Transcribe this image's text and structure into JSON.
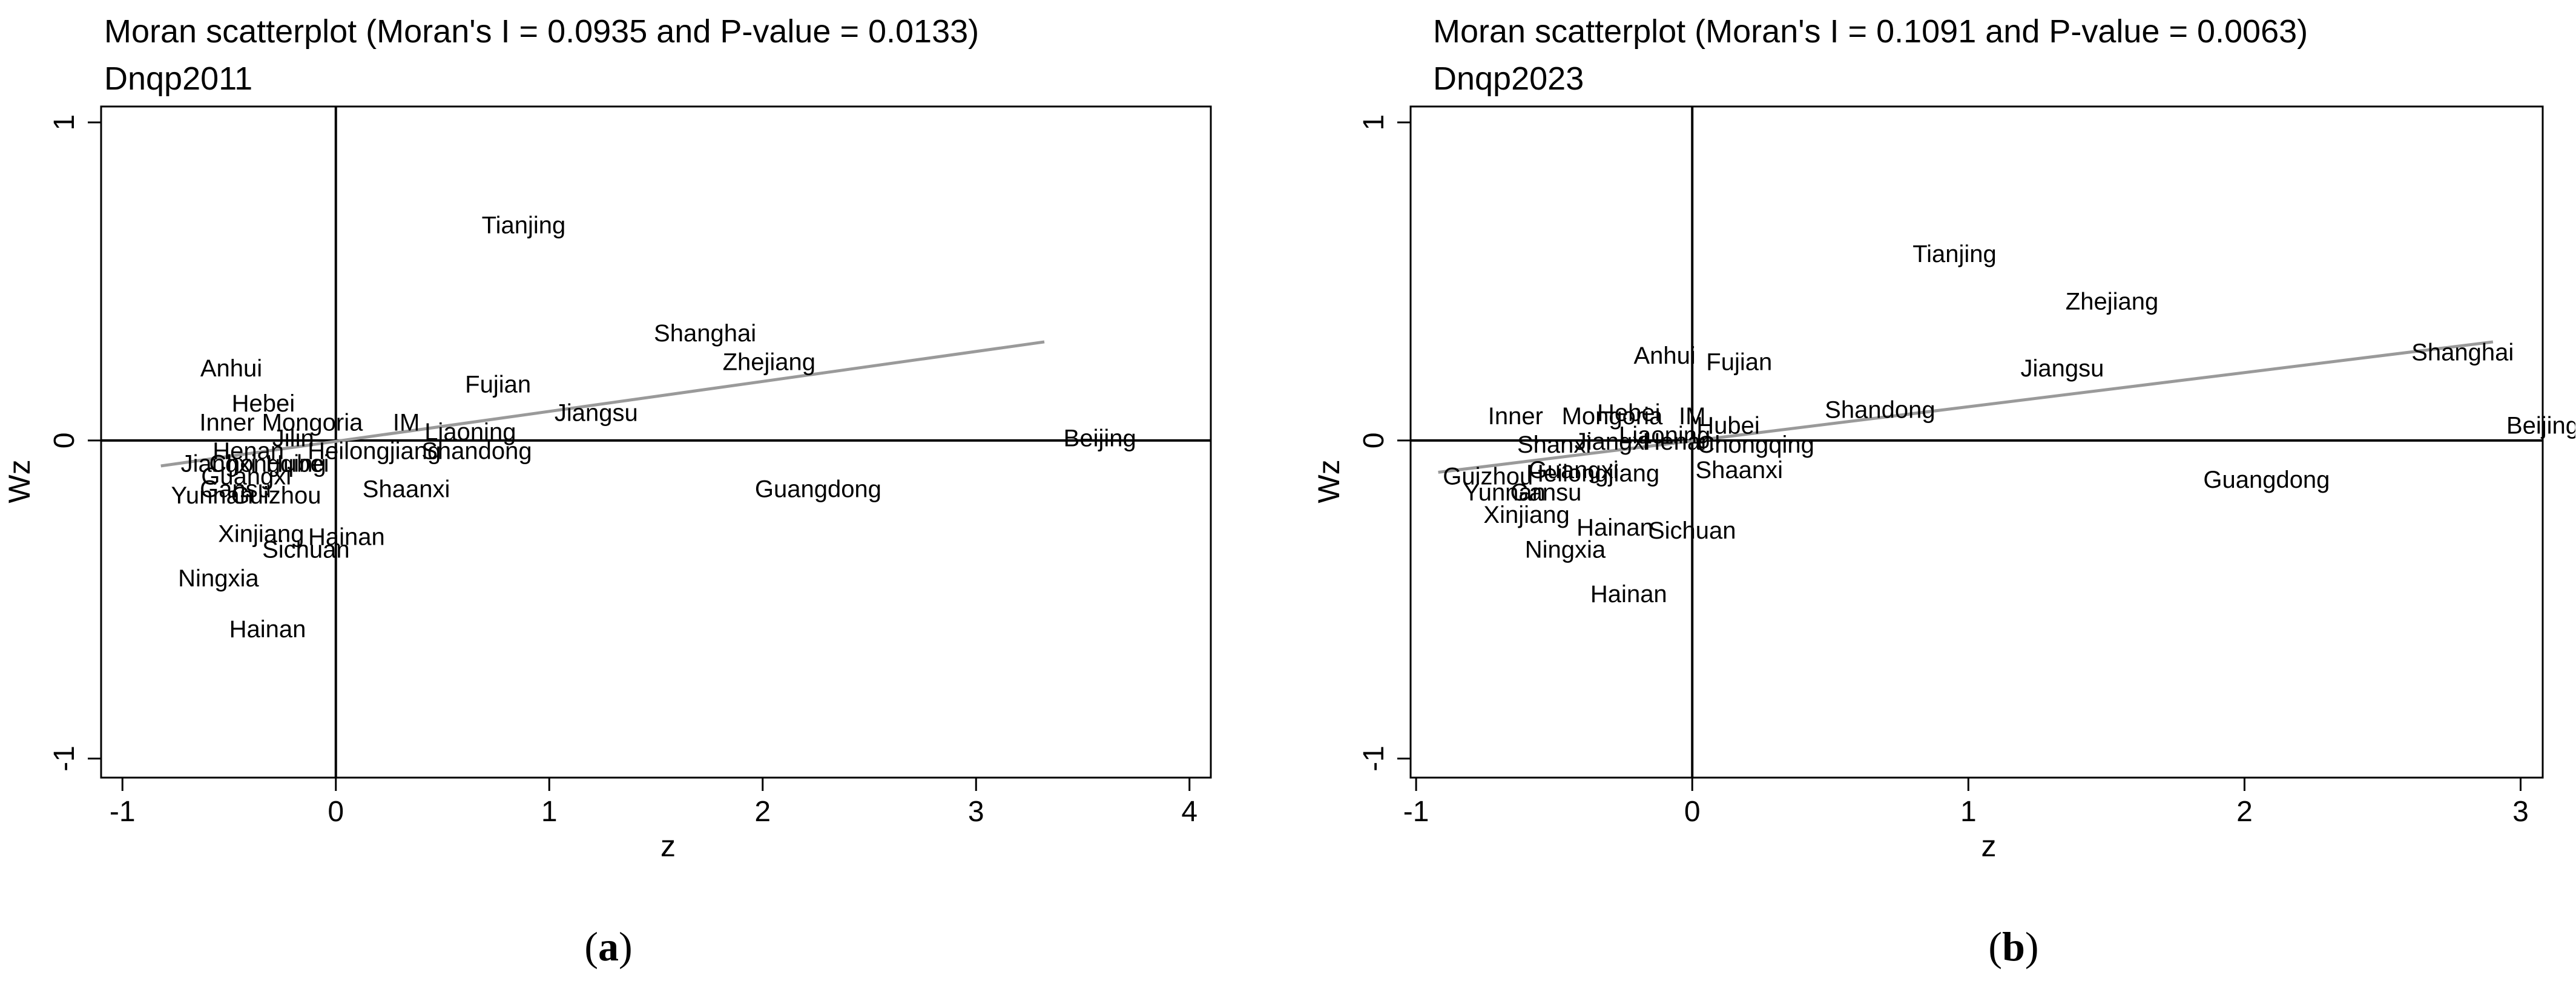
{
  "captions": [
    "a",
    "b"
  ],
  "chart_data": [
    {
      "type": "scatter",
      "title": "Moran scatterplot (Moran's I = 0.0935 and P-value = 0.0133)",
      "subtitle": "Dnqp2011",
      "xlabel": "z",
      "ylabel": "Wz",
      "xlim": [
        -1.1,
        4.1
      ],
      "ylim": [
        -1.06,
        1.05
      ],
      "xticks": [
        "-1",
        "0",
        "1",
        "2",
        "3",
        "4"
      ],
      "yticks": [
        "-1",
        "0",
        "1"
      ],
      "xtick_values": [
        -1,
        0,
        1,
        2,
        3,
        4
      ],
      "ytick_values": [
        -1,
        0,
        1
      ],
      "fit_line": {
        "x": [
          -0.82,
          3.32
        ],
        "y": [
          -0.08,
          0.31
        ]
      },
      "points": [
        {
          "label": "Tianjing",
          "x": 0.88,
          "y": 0.68
        },
        {
          "label": "Shanghai",
          "x": 1.73,
          "y": 0.34
        },
        {
          "label": "Zhejiang",
          "x": 2.03,
          "y": 0.25
        },
        {
          "label": "Fujian",
          "x": 0.76,
          "y": 0.18
        },
        {
          "label": "Jiangsu",
          "x": 1.22,
          "y": 0.09
        },
        {
          "label": "Beijing",
          "x": 3.58,
          "y": 0.01
        },
        {
          "label": "Guangdong",
          "x": 2.26,
          "y": -0.15
        },
        {
          "label": "Anhui",
          "x": -0.49,
          "y": 0.23
        },
        {
          "label": "Hebei",
          "x": -0.34,
          "y": 0.12
        },
        {
          "label": "Inner",
          "x": -0.51,
          "y": 0.06
        },
        {
          "label": "Mongoria",
          "x": -0.11,
          "y": 0.06
        },
        {
          "label": "IM",
          "x": 0.33,
          "y": 0.06
        },
        {
          "label": "Liaoning",
          "x": 0.63,
          "y": 0.03
        },
        {
          "label": "Jilin",
          "x": -0.2,
          "y": 0.01
        },
        {
          "label": "Henan",
          "x": -0.41,
          "y": -0.03
        },
        {
          "label": "Heilongjiang",
          "x": 0.18,
          "y": -0.03
        },
        {
          "label": "Shandong",
          "x": 0.66,
          "y": -0.03
        },
        {
          "label": "Jiangxi",
          "x": -0.55,
          "y": -0.07
        },
        {
          "label": "Chongqing",
          "x": -0.32,
          "y": -0.07
        },
        {
          "label": "Hubei",
          "x": -0.18,
          "y": -0.07
        },
        {
          "label": "Guangxi",
          "x": -0.42,
          "y": -0.11
        },
        {
          "label": "Gansu",
          "x": -0.47,
          "y": -0.15
        },
        {
          "label": "Yunnan",
          "x": -0.58,
          "y": -0.17
        },
        {
          "label": "Guizhou",
          "x": -0.28,
          "y": -0.17
        },
        {
          "label": "Shaanxi",
          "x": 0.33,
          "y": -0.15
        },
        {
          "label": "Xinjiang",
          "x": -0.35,
          "y": -0.29
        },
        {
          "label": "Hainan",
          "x": 0.05,
          "y": -0.3
        },
        {
          "label": "Sichuan",
          "x": -0.14,
          "y": -0.34
        },
        {
          "label": "Ningxia",
          "x": -0.55,
          "y": -0.43
        },
        {
          "label": "Hainan",
          "x": -0.32,
          "y": -0.59
        }
      ]
    },
    {
      "type": "scatter",
      "title": "Moran scatterplot (Moran's I = 0.1091 and P-value = 0.0063)",
      "subtitle": "Dnqp2023",
      "xlabel": "z",
      "ylabel": "Wz",
      "xlim": [
        -1.02,
        3.08
      ],
      "ylim": [
        -1.06,
        1.05
      ],
      "xticks": [
        "-1",
        "0",
        "1",
        "2",
        "3"
      ],
      "yticks": [
        "-1",
        "0",
        "1"
      ],
      "xtick_values": [
        -1,
        0,
        1,
        2,
        3
      ],
      "ytick_values": [
        -1,
        0,
        1
      ],
      "fit_line": {
        "x": [
          -0.92,
          2.9
        ],
        "y": [
          -0.1,
          0.31
        ]
      },
      "points": [
        {
          "label": "Tianjing",
          "x": 0.95,
          "y": 0.59
        },
        {
          "label": "Zhejiang",
          "x": 1.52,
          "y": 0.44
        },
        {
          "label": "Shanghai",
          "x": 2.79,
          "y": 0.28
        },
        {
          "label": "Jiangsu",
          "x": 1.34,
          "y": 0.23
        },
        {
          "label": "Anhui",
          "x": -0.1,
          "y": 0.27
        },
        {
          "label": "Fujian",
          "x": 0.17,
          "y": 0.25
        },
        {
          "label": "Shandong",
          "x": 0.68,
          "y": 0.1
        },
        {
          "label": "Beijing",
          "x": 3.08,
          "y": 0.05
        },
        {
          "label": "Guangdong",
          "x": 2.08,
          "y": -0.12
        },
        {
          "label": "Inner",
          "x": -0.64,
          "y": 0.08
        },
        {
          "label": "Mongoria",
          "x": -0.29,
          "y": 0.08
        },
        {
          "label": "Hebei",
          "x": -0.23,
          "y": 0.09
        },
        {
          "label": "IM",
          "x": 0.0,
          "y": 0.08
        },
        {
          "label": "Hubei",
          "x": 0.13,
          "y": 0.05
        },
        {
          "label": "Jiangxi",
          "x": -0.29,
          "y": 0.0
        },
        {
          "label": "Liaoning",
          "x": -0.1,
          "y": 0.02
        },
        {
          "label": "Henan",
          "x": -0.05,
          "y": 0.0
        },
        {
          "label": "Chongqing",
          "x": 0.23,
          "y": -0.01
        },
        {
          "label": "Shanxi",
          "x": -0.5,
          "y": -0.01
        },
        {
          "label": "Guangxi",
          "x": -0.43,
          "y": -0.09
        },
        {
          "label": "Heilongjiang",
          "x": -0.36,
          "y": -0.1
        },
        {
          "label": "Shaanxi",
          "x": 0.17,
          "y": -0.09
        },
        {
          "label": "Guizhou",
          "x": -0.74,
          "y": -0.11
        },
        {
          "label": "Yunnan",
          "x": -0.68,
          "y": -0.16
        },
        {
          "label": "Gansu",
          "x": -0.53,
          "y": -0.16
        },
        {
          "label": "Xinjiang",
          "x": -0.6,
          "y": -0.23
        },
        {
          "label": "Hainan",
          "x": -0.28,
          "y": -0.27
        },
        {
          "label": "Sichuan",
          "x": 0.0,
          "y": -0.28
        },
        {
          "label": "Ningxia",
          "x": -0.46,
          "y": -0.34
        },
        {
          "label": "Hainan",
          "x": -0.23,
          "y": -0.48
        }
      ]
    }
  ]
}
